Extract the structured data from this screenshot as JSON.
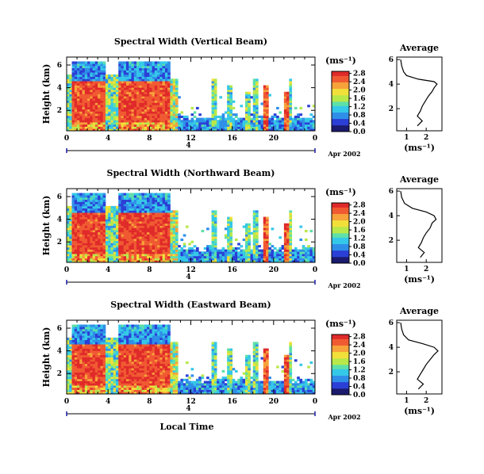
{
  "chart_data": [
    {
      "type": "heatmap",
      "title": "Spectral Width (Vertical Beam)",
      "ylabel": "Height (km)",
      "yticks": [
        "2",
        "4",
        "6"
      ],
      "xticks": [
        "0",
        "4",
        "8",
        "12",
        "16",
        "20",
        "0"
      ],
      "date_marker": "4",
      "date_label": "Apr 2002",
      "colorbar": {
        "unit": "(ms⁻¹)",
        "ticks": [
          "0.0",
          "0.4",
          "0.8",
          "1.2",
          "1.6",
          "2.0",
          "2.4",
          "2.8"
        ]
      },
      "average": {
        "title": "Average",
        "xlabel": "(ms⁻¹)",
        "xticks": [
          "1",
          "2"
        ],
        "yticks": [
          "2",
          "4",
          "6"
        ],
        "profile": [
          [
            1.55,
            0.6
          ],
          [
            1.8,
            1.0
          ],
          [
            1.55,
            1.4
          ],
          [
            1.7,
            1.8
          ],
          [
            1.8,
            2.2
          ],
          [
            1.95,
            2.6
          ],
          [
            2.1,
            3.0
          ],
          [
            2.3,
            3.4
          ],
          [
            2.4,
            3.7
          ],
          [
            2.55,
            4.0
          ],
          [
            2.4,
            4.2
          ],
          [
            1.6,
            4.4
          ],
          [
            1.0,
            4.7
          ],
          [
            0.85,
            5.0
          ],
          [
            0.75,
            5.5
          ],
          [
            0.7,
            6.0
          ]
        ]
      }
    },
    {
      "type": "heatmap",
      "title": "Spectral Width (Northward Beam)",
      "ylabel": "Height (km)",
      "yticks": [
        "2",
        "4",
        "6"
      ],
      "xticks": [
        "0",
        "4",
        "8",
        "12",
        "16",
        "20",
        "0"
      ],
      "date_marker": "4",
      "date_label": "Apr 2002",
      "colorbar": {
        "unit": "(ms⁻¹)",
        "ticks": [
          "0.0",
          "0.4",
          "0.8",
          "1.2",
          "1.6",
          "2.0",
          "2.4",
          "2.8"
        ]
      },
      "average": {
        "title": "Average",
        "xlabel": "(ms⁻¹)",
        "xticks": [
          "1",
          "2"
        ],
        "yticks": [
          "2",
          "4",
          "6"
        ],
        "profile": [
          [
            1.7,
            0.6
          ],
          [
            1.9,
            1.0
          ],
          [
            1.6,
            1.4
          ],
          [
            1.75,
            1.8
          ],
          [
            1.85,
            2.2
          ],
          [
            2.0,
            2.6
          ],
          [
            2.2,
            3.0
          ],
          [
            2.3,
            3.4
          ],
          [
            2.5,
            3.7
          ],
          [
            2.4,
            4.0
          ],
          [
            2.0,
            4.3
          ],
          [
            1.3,
            4.6
          ],
          [
            0.9,
            5.0
          ],
          [
            0.75,
            5.5
          ],
          [
            0.7,
            6.0
          ]
        ]
      }
    },
    {
      "type": "heatmap",
      "title": "Spectral Width (Eastward Beam)",
      "ylabel": "Height (km)",
      "yticks": [
        "2",
        "4",
        "6"
      ],
      "xticks": [
        "0",
        "4",
        "8",
        "12",
        "16",
        "20",
        "0"
      ],
      "date_marker": "4",
      "date_label": "Apr 2002",
      "xlabel": "Local Time",
      "colorbar": {
        "unit": "(ms⁻¹)",
        "ticks": [
          "0.0",
          "0.4",
          "0.8",
          "1.2",
          "1.6",
          "2.0",
          "2.4",
          "2.8"
        ]
      },
      "average": {
        "title": "Average",
        "xlabel": "(ms⁻¹)",
        "xticks": [
          "1",
          "2"
        ],
        "yticks": [
          "2",
          "4",
          "6"
        ],
        "profile": [
          [
            1.6,
            0.6
          ],
          [
            1.85,
            1.0
          ],
          [
            1.55,
            1.4
          ],
          [
            1.7,
            1.8
          ],
          [
            1.85,
            2.2
          ],
          [
            2.0,
            2.6
          ],
          [
            2.2,
            3.0
          ],
          [
            2.4,
            3.4
          ],
          [
            2.6,
            3.7
          ],
          [
            2.4,
            4.0
          ],
          [
            1.8,
            4.3
          ],
          [
            1.1,
            4.6
          ],
          [
            0.85,
            5.0
          ],
          [
            0.75,
            5.5
          ],
          [
            0.7,
            6.0
          ]
        ]
      }
    }
  ],
  "colors": {
    "scale": [
      "#1a1a6e",
      "#2b3fd6",
      "#2f8fe8",
      "#35c8e8",
      "#5ee0a8",
      "#b8e84a",
      "#f2e03a",
      "#f7a23a",
      "#f05a32",
      "#e02a2a"
    ]
  }
}
